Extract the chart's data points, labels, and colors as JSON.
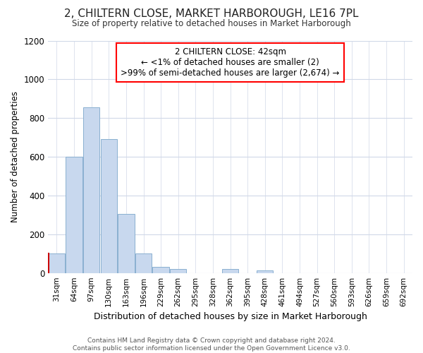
{
  "title": "2, CHILTERN CLOSE, MARKET HARBOROUGH, LE16 7PL",
  "subtitle": "Size of property relative to detached houses in Market Harborough",
  "xlabel": "Distribution of detached houses by size in Market Harborough",
  "ylabel": "Number of detached properties",
  "footer1": "Contains HM Land Registry data © Crown copyright and database right 2024.",
  "footer2": "Contains public sector information licensed under the Open Government Licence v3.0.",
  "annotation_line1": "2 CHILTERN CLOSE: 42sqm",
  "annotation_line2": "← <1% of detached houses are smaller (2)",
  "annotation_line3": ">99% of semi-detached houses are larger (2,674) →",
  "bar_color": "#c8d8ee",
  "bar_edge_color": "#8ab0d0",
  "red_edge_color": "#cc0000",
  "categories": [
    "31sqm",
    "64sqm",
    "97sqm",
    "130sqm",
    "163sqm",
    "196sqm",
    "229sqm",
    "262sqm",
    "295sqm",
    "328sqm",
    "362sqm",
    "395sqm",
    "428sqm",
    "461sqm",
    "494sqm",
    "527sqm",
    "560sqm",
    "593sqm",
    "626sqm",
    "659sqm",
    "692sqm"
  ],
  "values": [
    100,
    600,
    855,
    690,
    305,
    100,
    30,
    20,
    0,
    0,
    20,
    0,
    15,
    0,
    0,
    0,
    0,
    0,
    0,
    0,
    0
  ],
  "ylim": [
    0,
    1200
  ],
  "yticks": [
    0,
    200,
    400,
    600,
    800,
    1000,
    1200
  ],
  "property_bin_index": 0,
  "bg_color": "#ffffff",
  "plot_bg_color": "#ffffff",
  "grid_color": "#d0d8e8"
}
